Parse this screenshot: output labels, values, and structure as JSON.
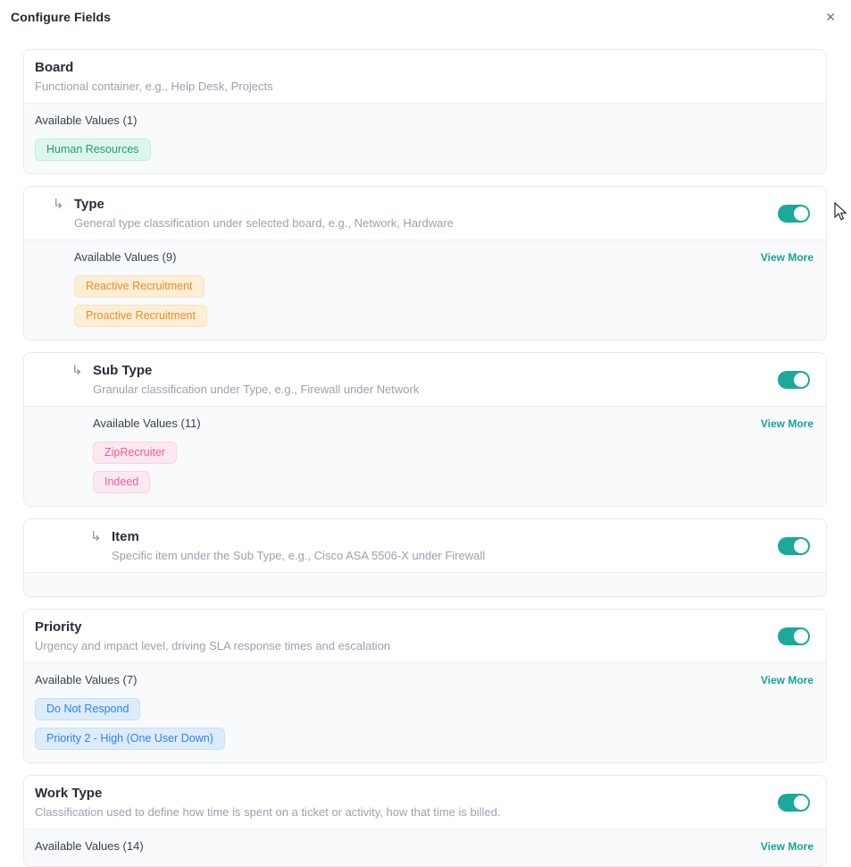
{
  "dialog": {
    "title": "Configure Fields",
    "close_glyph": "✕"
  },
  "colors": {
    "toggle_on": "#1ba99a",
    "view_more": "#15a294",
    "chip_palettes": {
      "green": {
        "bg": "#def7ec",
        "border": "#bdeeda",
        "text": "#1e9e6a"
      },
      "orange": {
        "bg": "#fdeed6",
        "border": "#fae2ba",
        "text": "#ef8b22"
      },
      "pink": {
        "bg": "#fce8f1",
        "border": "#f9d3e5",
        "text": "#ec5c9d"
      },
      "blue": {
        "bg": "#ddecfb",
        "border": "#c6dffa",
        "text": "#3081ee"
      }
    }
  },
  "sections": [
    {
      "id": "board",
      "title": "Board",
      "description": "Functional container, e.g., Help Desk, Projects",
      "indent": 0,
      "has_toggle": false,
      "toggle_on": false,
      "values": {
        "label": "Available Values (1)",
        "view_more": null,
        "chips": [
          {
            "label": "Human Resources",
            "palette": "green"
          }
        ]
      }
    },
    {
      "id": "type",
      "title": "Type",
      "description": "General type classification under selected board, e.g., Network, Hardware",
      "indent": 1,
      "has_toggle": true,
      "toggle_on": true,
      "values": {
        "label": "Available Values (9)",
        "view_more": "View More",
        "chips": [
          {
            "label": "Reactive Recruitment",
            "palette": "orange"
          },
          {
            "label": "Proactive Recruitment",
            "palette": "orange"
          }
        ]
      }
    },
    {
      "id": "sub-type",
      "title": "Sub Type",
      "description": "Granular classification under Type, e.g., Firewall under Network",
      "indent": 2,
      "has_toggle": true,
      "toggle_on": true,
      "values": {
        "label": "Available Values (11)",
        "view_more": "View More",
        "chips": [
          {
            "label": "ZipRecruiter",
            "palette": "pink"
          },
          {
            "label": "Indeed",
            "palette": "pink"
          }
        ]
      }
    },
    {
      "id": "item",
      "title": "Item",
      "description": "Specific item under the Sub Type, e.g., Cisco ASA 5506-X under Firewall",
      "indent": 3,
      "has_toggle": true,
      "toggle_on": true,
      "values": {
        "label": null,
        "view_more": null,
        "chips": []
      }
    },
    {
      "id": "priority",
      "title": "Priority",
      "description": "Urgency and impact level, driving SLA response times and escalation",
      "indent": 0,
      "has_toggle": true,
      "toggle_on": true,
      "values": {
        "label": "Available Values (7)",
        "view_more": "View More",
        "chips": [
          {
            "label": "Do Not Respond",
            "palette": "blue"
          },
          {
            "label": "Priority 2 - High (One User Down)",
            "palette": "blue"
          }
        ]
      }
    },
    {
      "id": "work-type",
      "title": "Work Type",
      "description": "Classification used to define how time is spent on a ticket or activity, how that time is billed.",
      "indent": 0,
      "has_toggle": true,
      "toggle_on": true,
      "values": {
        "label": "Available Values (14)",
        "view_more": "View More",
        "chips": []
      }
    }
  ]
}
